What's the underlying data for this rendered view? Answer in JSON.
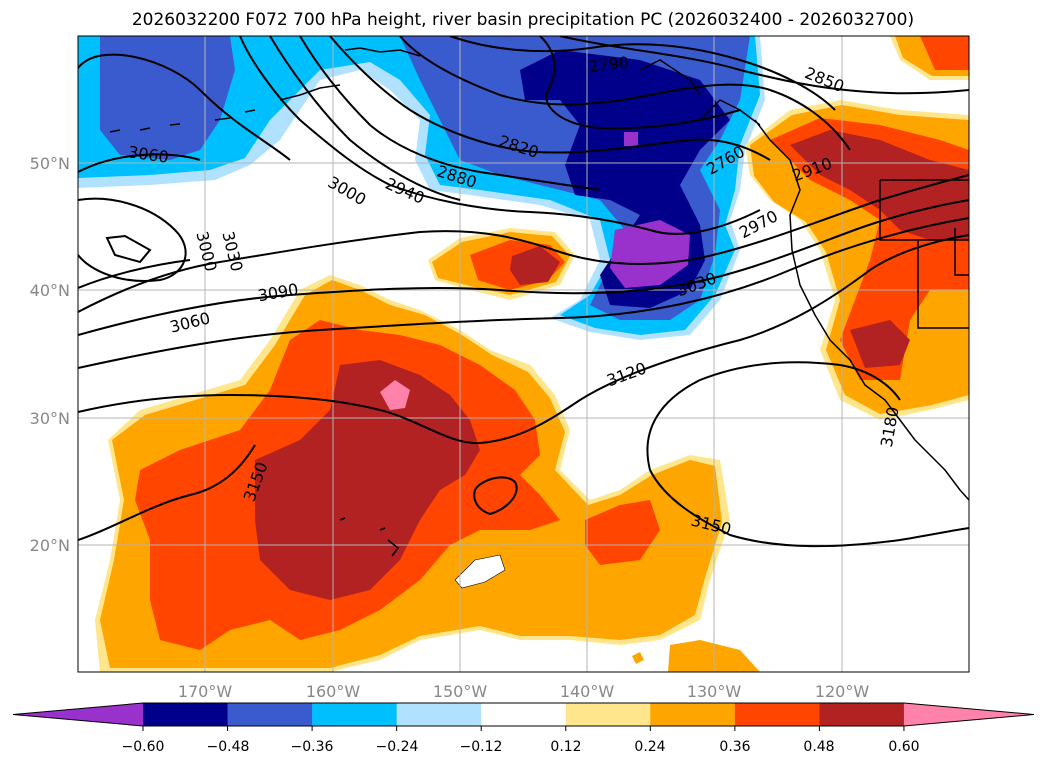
{
  "title": "2026032200 F072 700 hPa height, river basin precipitation PC (2026032400 - 2026032700)",
  "chart_data": {
    "type": "heatmap",
    "title": "2026032200 F072 700 hPa height, river basin precipitation PC (2026032400 - 2026032700)",
    "field": "river basin precipitation PC",
    "contour_field": "700 hPa height",
    "lon_range": [
      -180,
      -110
    ],
    "lat_range": [
      10,
      60
    ],
    "lon_ticks": [
      "170°W",
      "160°W",
      "150°W",
      "140°W",
      "130°W",
      "120°W"
    ],
    "lat_ticks": [
      "50°N",
      "40°N",
      "30°N",
      "20°N"
    ],
    "colorbar": {
      "levels": [
        "−0.60",
        "−0.48",
        "−0.36",
        "−0.24",
        "−0.12",
        "0.12",
        "0.24",
        "0.36",
        "0.48",
        "0.60"
      ],
      "colors": [
        "#9932cc",
        "#00008b",
        "#3a5bcd",
        "#00bfff",
        "#b0e2ff",
        "#ffffff",
        "#ffe68c",
        "#ffa500",
        "#ff4500",
        "#b22222",
        "#ff82ab"
      ]
    },
    "contour_labels": [
      "2790",
      "2850",
      "2760",
      "2820",
      "3060",
      "2880",
      "2910",
      "3000",
      "2940",
      "2970",
      "3030",
      "3000",
      "3030",
      "3090",
      "3060",
      "3120",
      "3150",
      "3150",
      "3180"
    ]
  }
}
